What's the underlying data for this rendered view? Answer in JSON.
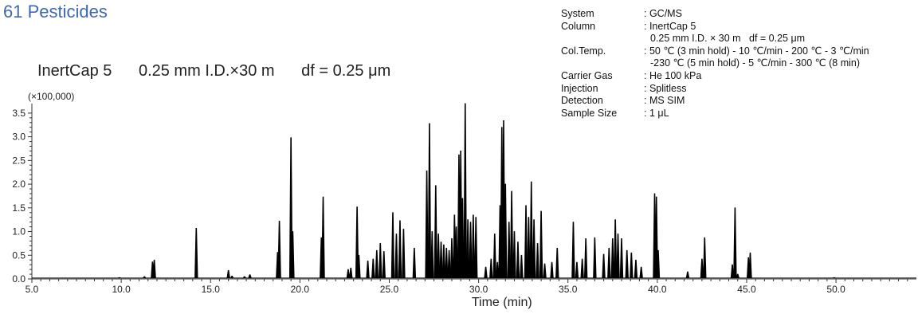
{
  "title": "61 Pesticides",
  "subtitle": [
    "InertCap 5",
    "0.25 mm I.D.×30 m",
    "df = 0.25 μm"
  ],
  "specs": [
    {
      "k": "System",
      "v": ": GC/MS"
    },
    {
      "k": "Column",
      "v": ": InertCap 5"
    },
    {
      "k": "",
      "v": "0.25 mm I.D. × 30 m   df = 0.25 μm"
    },
    {
      "k": "Col.Temp.",
      "v": ": 50 ℃ (3 min hold) - 10 ℃/min - 200 ℃ - 3 ℃/min"
    },
    {
      "k": "",
      "v": "-230 ℃ (5 min hold) - 5 ℃/min - 300 ℃ (8 min)"
    },
    {
      "k": "Carrier Gas",
      "v": ": He 100 kPa"
    },
    {
      "k": "Injection",
      "v": ": Splitless"
    },
    {
      "k": "Detection",
      "v": ": MS SIM"
    },
    {
      "k": "Sample Size",
      "v": ": 1 μL"
    }
  ],
  "colors": {
    "title": "#3f67b1",
    "trace": "#000000",
    "axis": "#333333"
  },
  "chart_data": {
    "type": "line",
    "title": "61 Pesticides",
    "xlabel": "Time (min)",
    "ylabel": "",
    "y_scale_label": "(×100,000)",
    "xlim": [
      5.0,
      54.5
    ],
    "ylim": [
      0,
      3.7
    ],
    "x_ticks": [
      5.0,
      10.0,
      15.0,
      20.0,
      25.0,
      30.0,
      35.0,
      40.0,
      45.0,
      50.0
    ],
    "x_tick_labels": [
      "5.0",
      "10.0",
      "15.0",
      "20.0",
      "25.0",
      "30.0",
      "35.0",
      "40.0",
      "45.0",
      "50.0"
    ],
    "y_ticks": [
      0.0,
      0.5,
      1.0,
      1.5,
      2.0,
      2.5,
      3.0,
      3.5
    ],
    "y_tick_labels": [
      "0.0",
      "0.5",
      "1.0",
      "1.5",
      "2.0",
      "2.5",
      "3.0",
      "3.5"
    ],
    "grid": false,
    "peaks": [
      {
        "x": 9.9,
        "y": 0.03
      },
      {
        "x": 11.3,
        "y": 0.05
      },
      {
        "x": 11.75,
        "y": 0.36
      },
      {
        "x": 11.85,
        "y": 0.4
      },
      {
        "x": 14.2,
        "y": 1.07
      },
      {
        "x": 16.0,
        "y": 0.18
      },
      {
        "x": 16.2,
        "y": 0.06
      },
      {
        "x": 16.9,
        "y": 0.05
      },
      {
        "x": 17.2,
        "y": 0.09
      },
      {
        "x": 18.75,
        "y": 0.56
      },
      {
        "x": 18.85,
        "y": 1.22
      },
      {
        "x": 19.5,
        "y": 2.98
      },
      {
        "x": 19.6,
        "y": 1.0
      },
      {
        "x": 21.2,
        "y": 0.87
      },
      {
        "x": 21.3,
        "y": 1.73
      },
      {
        "x": 22.7,
        "y": 0.2
      },
      {
        "x": 22.85,
        "y": 0.23
      },
      {
        "x": 23.2,
        "y": 1.52
      },
      {
        "x": 23.3,
        "y": 0.5
      },
      {
        "x": 23.8,
        "y": 0.38
      },
      {
        "x": 24.1,
        "y": 0.42
      },
      {
        "x": 24.3,
        "y": 0.6
      },
      {
        "x": 24.5,
        "y": 0.75
      },
      {
        "x": 24.7,
        "y": 0.58
      },
      {
        "x": 25.2,
        "y": 1.4
      },
      {
        "x": 25.4,
        "y": 0.95
      },
      {
        "x": 25.6,
        "y": 1.23
      },
      {
        "x": 25.8,
        "y": 1.05
      },
      {
        "x": 26.4,
        "y": 0.65
      },
      {
        "x": 27.1,
        "y": 2.28
      },
      {
        "x": 27.25,
        "y": 3.28
      },
      {
        "x": 27.4,
        "y": 1.0
      },
      {
        "x": 27.6,
        "y": 1.97
      },
      {
        "x": 27.75,
        "y": 0.95
      },
      {
        "x": 27.9,
        "y": 0.78
      },
      {
        "x": 28.05,
        "y": 0.72
      },
      {
        "x": 28.2,
        "y": 0.65
      },
      {
        "x": 28.35,
        "y": 0.6
      },
      {
        "x": 28.5,
        "y": 0.85
      },
      {
        "x": 28.65,
        "y": 1.35
      },
      {
        "x": 28.75,
        "y": 1.1
      },
      {
        "x": 28.9,
        "y": 2.62
      },
      {
        "x": 29.0,
        "y": 2.7
      },
      {
        "x": 29.1,
        "y": 1.7
      },
      {
        "x": 29.25,
        "y": 3.75
      },
      {
        "x": 29.4,
        "y": 1.25
      },
      {
        "x": 29.55,
        "y": 1.2
      },
      {
        "x": 29.7,
        "y": 1.35
      },
      {
        "x": 29.85,
        "y": 1.3
      },
      {
        "x": 30.4,
        "y": 0.25
      },
      {
        "x": 30.7,
        "y": 0.42
      },
      {
        "x": 30.9,
        "y": 0.95
      },
      {
        "x": 31.05,
        "y": 0.35
      },
      {
        "x": 31.2,
        "y": 1.55
      },
      {
        "x": 31.3,
        "y": 3.2
      },
      {
        "x": 31.4,
        "y": 3.34
      },
      {
        "x": 31.5,
        "y": 2.0
      },
      {
        "x": 31.7,
        "y": 1.2
      },
      {
        "x": 31.85,
        "y": 1.85
      },
      {
        "x": 32.0,
        "y": 1.0
      },
      {
        "x": 32.2,
        "y": 0.78
      },
      {
        "x": 32.4,
        "y": 0.5
      },
      {
        "x": 32.65,
        "y": 1.55
      },
      {
        "x": 32.8,
        "y": 1.3
      },
      {
        "x": 32.95,
        "y": 2.05
      },
      {
        "x": 33.1,
        "y": 1.25
      },
      {
        "x": 33.3,
        "y": 0.75
      },
      {
        "x": 33.5,
        "y": 1.43
      },
      {
        "x": 33.7,
        "y": 0.32
      },
      {
        "x": 34.1,
        "y": 0.35
      },
      {
        "x": 34.4,
        "y": 0.65
      },
      {
        "x": 35.3,
        "y": 1.2
      },
      {
        "x": 35.5,
        "y": 0.35
      },
      {
        "x": 35.8,
        "y": 0.42
      },
      {
        "x": 36.0,
        "y": 0.85
      },
      {
        "x": 36.5,
        "y": 0.87
      },
      {
        "x": 37.0,
        "y": 0.52
      },
      {
        "x": 37.3,
        "y": 0.65
      },
      {
        "x": 37.5,
        "y": 0.85
      },
      {
        "x": 37.65,
        "y": 1.25
      },
      {
        "x": 37.8,
        "y": 0.95
      },
      {
        "x": 38.0,
        "y": 0.85
      },
      {
        "x": 38.3,
        "y": 0.6
      },
      {
        "x": 38.55,
        "y": 0.55
      },
      {
        "x": 38.8,
        "y": 0.4
      },
      {
        "x": 39.1,
        "y": 0.25
      },
      {
        "x": 39.85,
        "y": 1.8
      },
      {
        "x": 39.95,
        "y": 1.73
      },
      {
        "x": 40.05,
        "y": 0.6
      },
      {
        "x": 41.7,
        "y": 0.15
      },
      {
        "x": 42.5,
        "y": 0.42
      },
      {
        "x": 42.65,
        "y": 0.87
      },
      {
        "x": 44.2,
        "y": 0.3
      },
      {
        "x": 44.35,
        "y": 1.5
      },
      {
        "x": 44.5,
        "y": 0.1
      },
      {
        "x": 45.1,
        "y": 0.45
      },
      {
        "x": 45.2,
        "y": 0.55
      },
      {
        "x": 49.9,
        "y": 0.03
      }
    ]
  }
}
